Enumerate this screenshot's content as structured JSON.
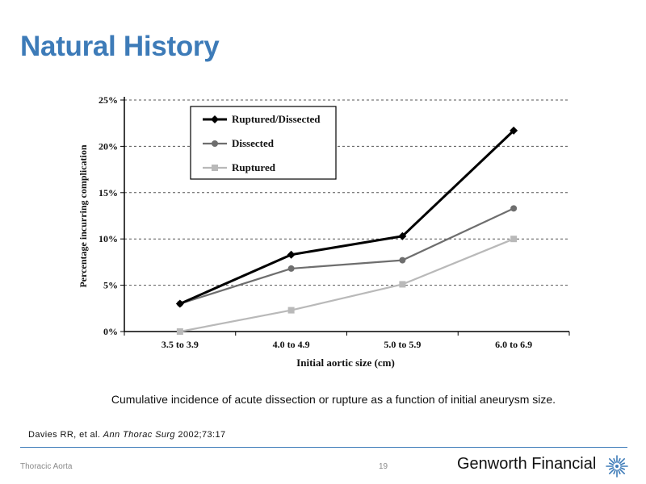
{
  "slide": {
    "title": "Natural History",
    "caption": "Cumulative incidence of acute dissection or rupture as a function of initial aneurysm size.",
    "citation_authors": "Davies RR, et al.",
    "citation_journal": "Ann Thorac Surg",
    "citation_ref": "2002;73:17",
    "footer_left": "Thoracic Aorta",
    "page_number": "19",
    "brand_name": "Genworth Financial",
    "brand_color": "#3d7bb8",
    "brand_icon": "genworth-starburst-icon"
  },
  "chart_data": {
    "type": "line",
    "categories": [
      "3.5 to 3.9",
      "4.0 to 4.9",
      "5.0 to 5.9",
      "6.0 to 6.9"
    ],
    "series": [
      {
        "name": "Ruptured/Dissected",
        "values": [
          3.0,
          8.3,
          10.3,
          21.7
        ],
        "color": "#000000",
        "marker": "diamond"
      },
      {
        "name": "Dissected",
        "values": [
          3.0,
          6.8,
          7.7,
          13.3
        ],
        "color": "#6e6e6e",
        "marker": "circle"
      },
      {
        "name": "Ruptured",
        "values": [
          0.0,
          2.3,
          5.1,
          10.0
        ],
        "color": "#b9b9b9",
        "marker": "square"
      }
    ],
    "yticks": [
      "0%",
      "5%",
      "10%",
      "15%",
      "20%",
      "25%"
    ],
    "ylim": [
      0,
      25
    ],
    "xlabel": "Initial aortic size (cm)",
    "ylabel": "Percentage incurring complication",
    "grid": "horizontal dashed",
    "legend_position": "top-left"
  }
}
